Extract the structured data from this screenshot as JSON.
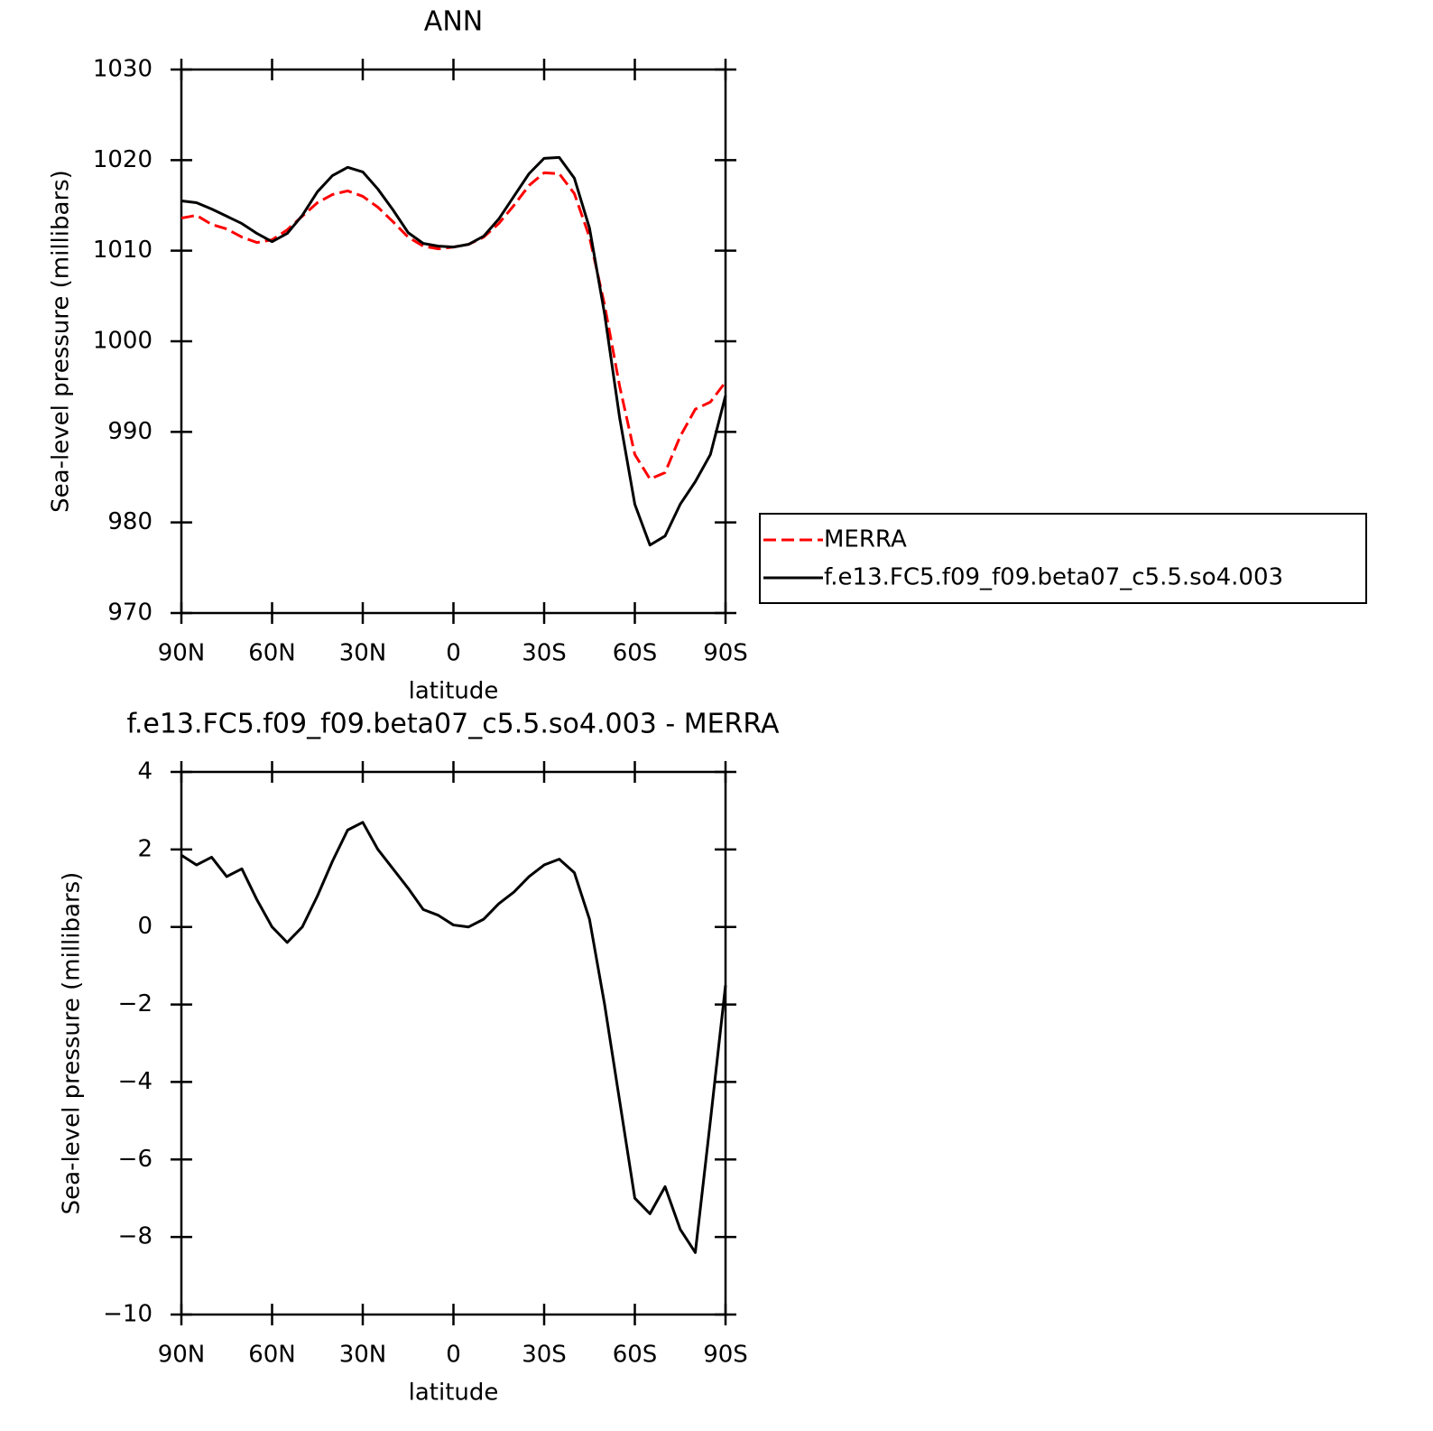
{
  "chart_data": [
    {
      "type": "line",
      "title": "ANN",
      "xlabel": "latitude",
      "ylabel": "Sea-level pressure (millibars)",
      "x": [
        90,
        85,
        80,
        75,
        70,
        65,
        60,
        55,
        50,
        45,
        40,
        35,
        30,
        25,
        20,
        15,
        10,
        5,
        0,
        -5,
        -10,
        -15,
        -20,
        -25,
        -30,
        -35,
        -40,
        -45,
        -50,
        -55,
        -60,
        -65,
        -70,
        -75,
        -80,
        -85,
        -90
      ],
      "series": [
        {
          "name": "MERRA",
          "color": "#ff0000",
          "dash": true,
          "values": [
            1013.6,
            1013.9,
            1012.9,
            1012.4,
            1011.5,
            1010.9,
            1011.2,
            1012.3,
            1013.8,
            1015.3,
            1016.2,
            1016.6,
            1016.0,
            1014.8,
            1013.2,
            1011.5,
            1010.5,
            1010.2,
            1010.4,
            1010.7,
            1011.5,
            1013.0,
            1015.0,
            1017.2,
            1018.6,
            1018.5,
            1016.3,
            1011.5,
            1004.0,
            995.0,
            987.5,
            984.8,
            985.5,
            989.5,
            992.5,
            993.3,
            995.5
          ]
        },
        {
          "name": "f.e13.FC5.f09_f09.beta07_c5.5.so4.003",
          "color": "#000000",
          "dash": false,
          "values": [
            1015.5,
            1015.3,
            1014.6,
            1013.8,
            1013.0,
            1011.9,
            1011.0,
            1011.9,
            1013.9,
            1016.5,
            1018.3,
            1019.2,
            1018.7,
            1016.8,
            1014.5,
            1012.0,
            1010.8,
            1010.5,
            1010.4,
            1010.7,
            1011.6,
            1013.5,
            1016.0,
            1018.5,
            1020.2,
            1020.3,
            1018.0,
            1012.5,
            1003.0,
            991.5,
            982.0,
            977.5,
            978.5,
            982.0,
            984.5,
            987.5,
            994.0
          ]
        }
      ],
      "xlim": [
        90,
        -90
      ],
      "xticks": [
        {
          "value": 90,
          "label": "90N"
        },
        {
          "value": 60,
          "label": "60N"
        },
        {
          "value": 30,
          "label": "30N"
        },
        0,
        {
          "value": -30,
          "label": "30S"
        },
        {
          "value": -60,
          "label": "60S"
        },
        {
          "value": -90,
          "label": "90S"
        }
      ],
      "ylim": [
        970,
        1030
      ],
      "yticks": [
        970,
        980,
        990,
        1000,
        1010,
        1020,
        1030
      ],
      "legend": "right"
    },
    {
      "type": "line",
      "title": "f.e13.FC5.f09_f09.beta07_c5.5.so4.003 - MERRA",
      "xlabel": "latitude",
      "ylabel": "Sea-level pressure (millibars)",
      "x": [
        90,
        85,
        80,
        75,
        70,
        65,
        60,
        55,
        50,
        45,
        40,
        35,
        30,
        25,
        20,
        15,
        10,
        5,
        0,
        -5,
        -10,
        -15,
        -20,
        -25,
        -30,
        -35,
        -40,
        -45,
        -50,
        -55,
        -60,
        -65,
        -70,
        -75,
        -80,
        -85,
        -90
      ],
      "series": [
        {
          "color": "#000000",
          "dash": false,
          "values": [
            1.85,
            1.6,
            1.8,
            1.3,
            1.5,
            0.7,
            0.0,
            -0.4,
            0.0,
            0.8,
            1.7,
            2.5,
            2.7,
            2.0,
            1.5,
            1.0,
            0.45,
            0.3,
            0.05,
            0.0,
            0.2,
            0.6,
            0.9,
            1.3,
            1.6,
            1.75,
            1.4,
            0.2,
            -2.0,
            -4.5,
            -7.0,
            -7.4,
            -6.7,
            -7.8,
            -8.4,
            -5.0,
            -1.5
          ]
        }
      ],
      "xlim": [
        90,
        -90
      ],
      "xticks": [
        {
          "value": 90,
          "label": "90N"
        },
        {
          "value": 60,
          "label": "60N"
        },
        {
          "value": 30,
          "label": "30N"
        },
        0,
        {
          "value": -30,
          "label": "30S"
        },
        {
          "value": -60,
          "label": "60S"
        },
        {
          "value": -90,
          "label": "90S"
        }
      ],
      "ylim": [
        -10,
        4
      ],
      "yticks": [
        {
          "value": -10,
          "label": "−10"
        },
        {
          "value": -8,
          "label": "−8"
        },
        {
          "value": -6,
          "label": "−6"
        },
        {
          "value": -4,
          "label": "−4"
        },
        {
          "value": -2,
          "label": "−2"
        },
        0,
        2,
        4
      ]
    }
  ]
}
